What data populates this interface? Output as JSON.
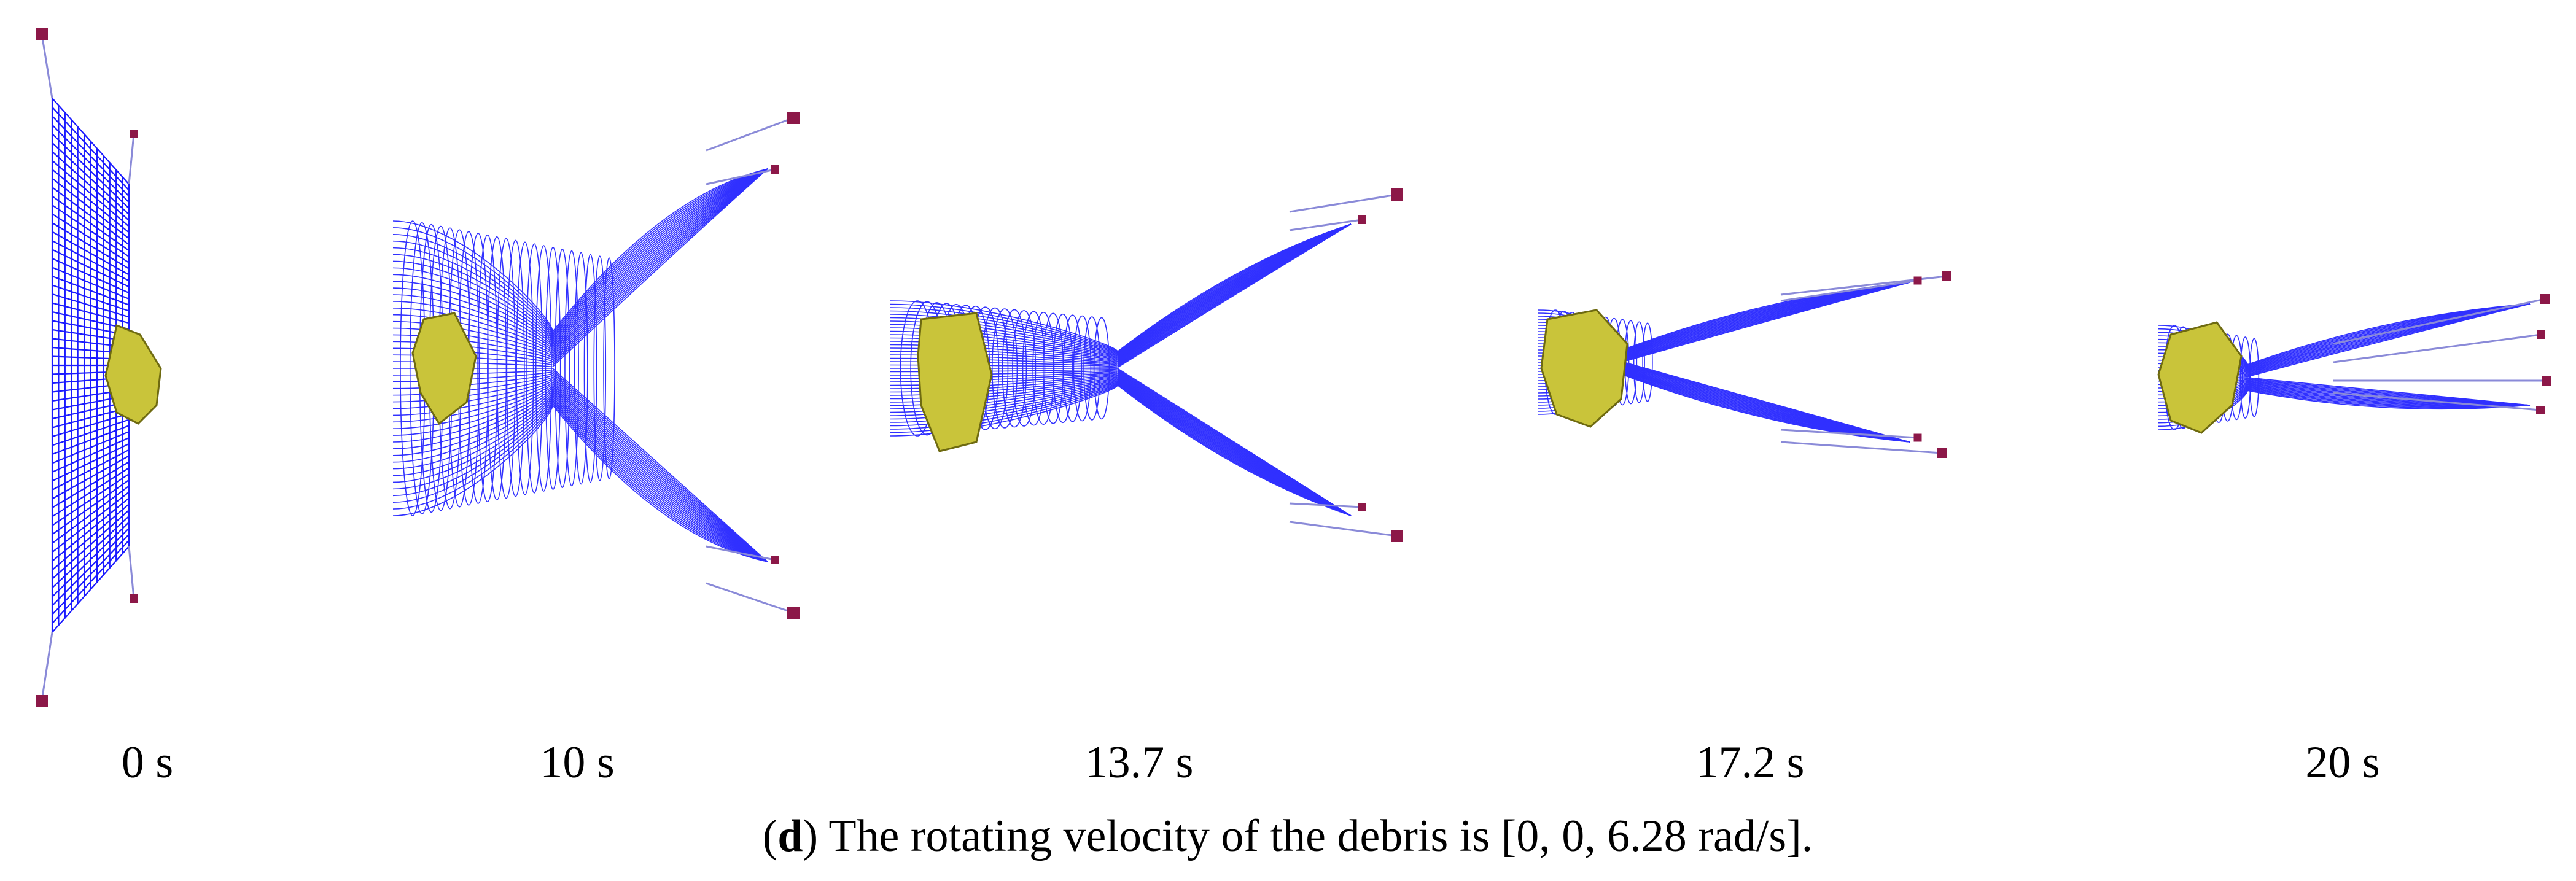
{
  "frames": [
    {
      "time_label": "0 s"
    },
    {
      "time_label": "10 s"
    },
    {
      "time_label": "13.7 s"
    },
    {
      "time_label": "17.2 s"
    },
    {
      "time_label": "20 s"
    }
  ],
  "caption": {
    "open_paren": "(",
    "letter": "d",
    "text": ") The rotating velocity of the debris is [0, 0, 6.28 rad/s]."
  },
  "colors": {
    "net": "#1a1aff",
    "tether": "#8a8ad8",
    "debris_fill": "#c9c43a",
    "debris_stroke": "#6e6a10",
    "mass": "#8c1848"
  }
}
